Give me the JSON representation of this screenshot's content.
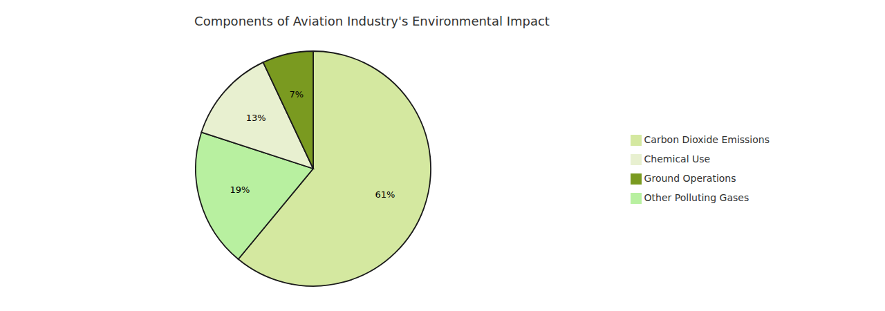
{
  "chart_data": {
    "type": "pie",
    "title": "Components of Aviation Industry's Environmental Impact",
    "categories": [
      "Carbon Dioxide Emissions",
      "Other Polluting Gases",
      "Chemical Use",
      "Ground Operations"
    ],
    "values": [
      61,
      19,
      13,
      7
    ],
    "value_labels": [
      "61%",
      "19%",
      "13%",
      "7%"
    ],
    "colors": [
      "#d4e8a0",
      "#b8f0a0",
      "#e8f0d0",
      "#7a9a20"
    ],
    "data_labels": true,
    "legend": "right"
  }
}
